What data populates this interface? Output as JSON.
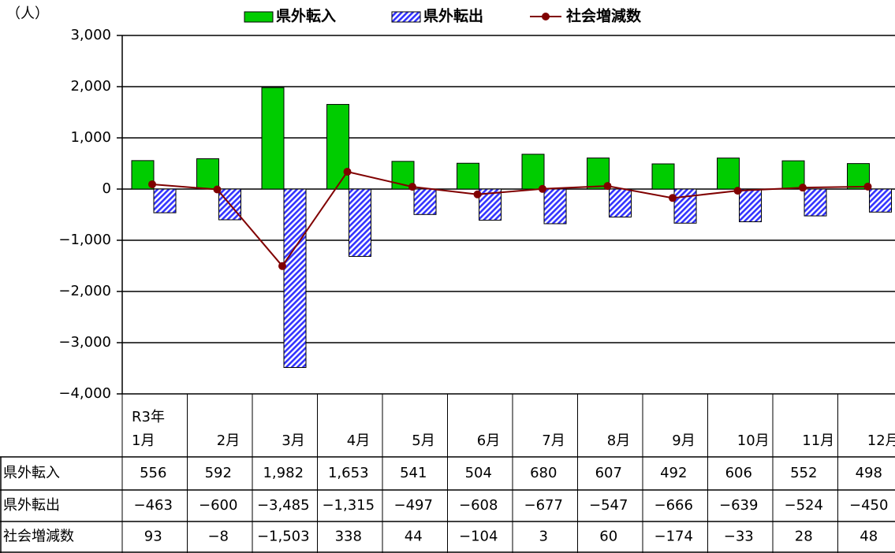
{
  "chart_data": {
    "type": "bar",
    "y_unit": "（人）",
    "categories": [
      "R3年\n1月",
      "2月",
      "3月",
      "4月",
      "5月",
      "6月",
      "7月",
      "8月",
      "9月",
      "10月",
      "11月",
      "12月"
    ],
    "series": [
      {
        "name": "県外転入",
        "type": "bar",
        "color": "#00cc00",
        "values": [
          556,
          592,
          1982,
          1653,
          541,
          504,
          680,
          607,
          492,
          606,
          552,
          498
        ],
        "value_labels": [
          "556",
          "592",
          "1,982",
          "1,653",
          "541",
          "504",
          "680",
          "607",
          "492",
          "606",
          "552",
          "498"
        ]
      },
      {
        "name": "県外転出",
        "type": "bar",
        "color": "#3333ff",
        "values": [
          -463,
          -600,
          -3485,
          -1315,
          -497,
          -608,
          -677,
          -547,
          -666,
          -639,
          -524,
          -450
        ],
        "value_labels": [
          "−463",
          "−600",
          "−3,485",
          "−1,315",
          "−497",
          "−608",
          "−677",
          "−547",
          "−666",
          "−639",
          "−524",
          "−450"
        ]
      },
      {
        "name": "社会増減数",
        "type": "line",
        "color": "#800000",
        "values": [
          93,
          -8,
          -1503,
          338,
          44,
          -104,
          3,
          60,
          -174,
          -33,
          28,
          48
        ],
        "value_labels": [
          "93",
          "−8",
          "−1,503",
          "338",
          "44",
          "−104",
          "3",
          "60",
          "−174",
          "−33",
          "28",
          "48"
        ]
      }
    ],
    "ylim": [
      -4000,
      3000
    ],
    "yticks": [
      {
        "value": -4000,
        "label": "−4,000"
      },
      {
        "value": -3000,
        "label": "−3,000"
      },
      {
        "value": -2000,
        "label": "−2,000"
      },
      {
        "value": -1000,
        "label": "−1,000"
      },
      0,
      {
        "value": 1000,
        "label": "1,000"
      },
      {
        "value": 2000,
        "label": "2,000"
      },
      {
        "value": 3000,
        "label": "3,000"
      }
    ],
    "grid": true
  }
}
